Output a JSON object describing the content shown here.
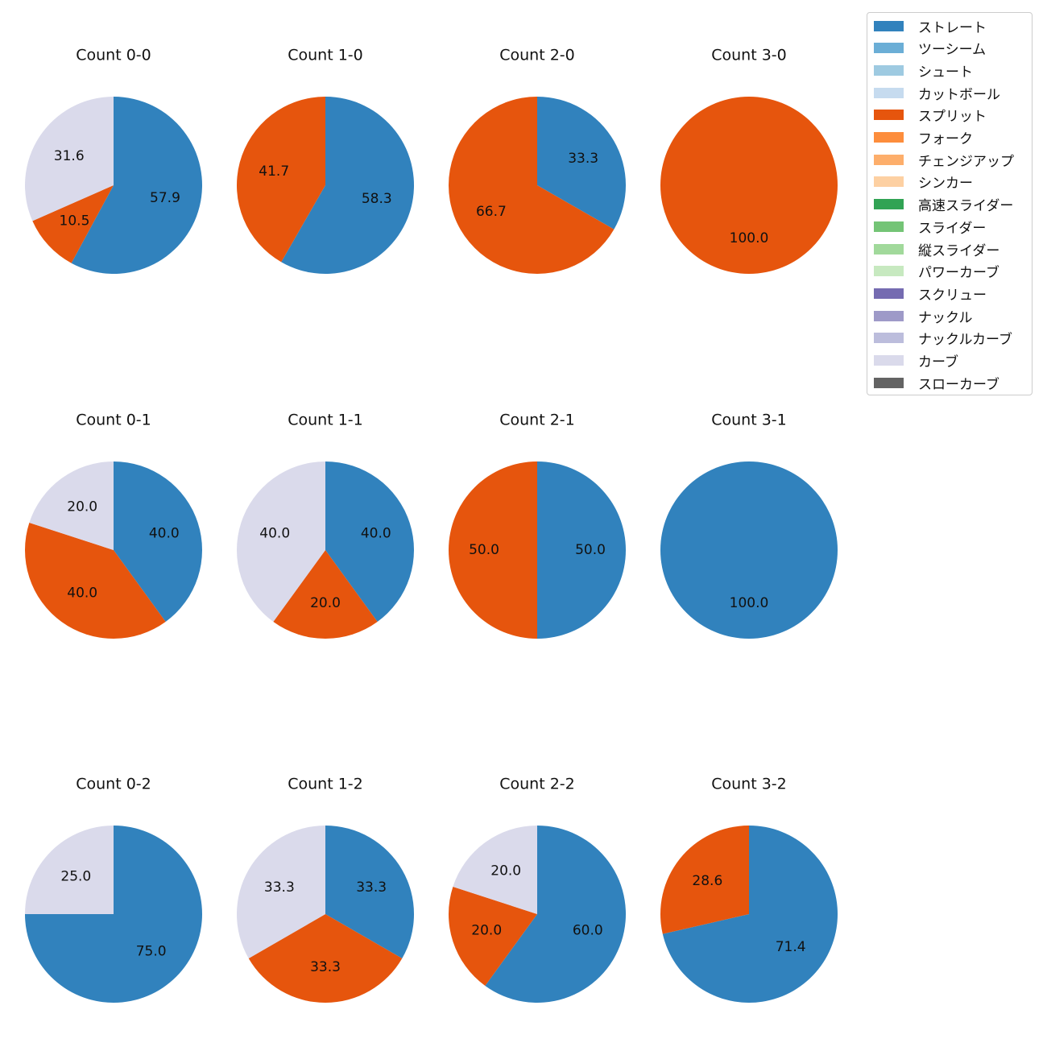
{
  "chart_data": {
    "type": "pie",
    "colors": {
      "ストレート": "#3182bd",
      "ツーシーム": "#6baed6",
      "シュート": "#9ecae1",
      "カットボール": "#c6dbef",
      "スプリット": "#e6550d",
      "フォーク": "#fd8d3c",
      "チェンジアップ": "#fdae6b",
      "シンカー": "#fdd0a2",
      "高速スライダー": "#31a354",
      "スライダー": "#74c476",
      "縦スライダー": "#a1d99b",
      "パワーカーブ": "#c7e9c0",
      "スクリュー": "#756bb1",
      "ナックル": "#9e9ac8",
      "ナックルカーブ": "#bcbddc",
      "カーブ": "#dadaeb",
      "スローカーブ": "#636363"
    },
    "legend": {
      "placement": "top-right",
      "entries": [
        "ストレート",
        "ツーシーム",
        "シュート",
        "カットボール",
        "スプリット",
        "フォーク",
        "チェンジアップ",
        "シンカー",
        "高速スライダー",
        "スライダー",
        "縦スライダー",
        "パワーカーブ",
        "スクリュー",
        "ナックル",
        "ナックルカーブ",
        "カーブ",
        "スローカーブ"
      ]
    },
    "pies": [
      {
        "title": "Count 0-0",
        "slices": [
          {
            "label": "ストレート",
            "value": 57.9,
            "text": "57.9"
          },
          {
            "label": "スプリット",
            "value": 10.5,
            "text": "10.5"
          },
          {
            "label": "カーブ",
            "value": 31.6,
            "text": "31.6"
          }
        ]
      },
      {
        "title": "Count 1-0",
        "slices": [
          {
            "label": "ストレート",
            "value": 58.3,
            "text": "58.3"
          },
          {
            "label": "スプリット",
            "value": 41.7,
            "text": "41.7"
          }
        ]
      },
      {
        "title": "Count 2-0",
        "slices": [
          {
            "label": "ストレート",
            "value": 33.3,
            "text": "33.3"
          },
          {
            "label": "スプリット",
            "value": 66.7,
            "text": "66.7"
          }
        ]
      },
      {
        "title": "Count 3-0",
        "slices": [
          {
            "label": "スプリット",
            "value": 100.0,
            "text": "100.0"
          }
        ]
      },
      {
        "title": "Count 0-1",
        "slices": [
          {
            "label": "ストレート",
            "value": 40.0,
            "text": "40.0"
          },
          {
            "label": "スプリット",
            "value": 40.0,
            "text": "40.0"
          },
          {
            "label": "カーブ",
            "value": 20.0,
            "text": "20.0"
          }
        ]
      },
      {
        "title": "Count 1-1",
        "slices": [
          {
            "label": "ストレート",
            "value": 40.0,
            "text": "40.0"
          },
          {
            "label": "スプリット",
            "value": 20.0,
            "text": "20.0"
          },
          {
            "label": "カーブ",
            "value": 40.0,
            "text": "40.0"
          }
        ]
      },
      {
        "title": "Count 2-1",
        "slices": [
          {
            "label": "ストレート",
            "value": 50.0,
            "text": "50.0"
          },
          {
            "label": "スプリット",
            "value": 50.0,
            "text": "50.0"
          }
        ]
      },
      {
        "title": "Count 3-1",
        "slices": [
          {
            "label": "ストレート",
            "value": 100.0,
            "text": "100.0"
          }
        ]
      },
      {
        "title": "Count 0-2",
        "slices": [
          {
            "label": "ストレート",
            "value": 75.0,
            "text": "75.0"
          },
          {
            "label": "カーブ",
            "value": 25.0,
            "text": "25.0"
          }
        ]
      },
      {
        "title": "Count 1-2",
        "slices": [
          {
            "label": "ストレート",
            "value": 33.3,
            "text": "33.3"
          },
          {
            "label": "スプリット",
            "value": 33.3,
            "text": "33.3"
          },
          {
            "label": "カーブ",
            "value": 33.3,
            "text": "33.3"
          }
        ]
      },
      {
        "title": "Count 2-2",
        "slices": [
          {
            "label": "ストレート",
            "value": 60.0,
            "text": "60.0"
          },
          {
            "label": "スプリット",
            "value": 20.0,
            "text": "20.0"
          },
          {
            "label": "カーブ",
            "value": 20.0,
            "text": "20.0"
          }
        ]
      },
      {
        "title": "Count 3-2",
        "slices": [
          {
            "label": "ストレート",
            "value": 71.4,
            "text": "71.4"
          },
          {
            "label": "スプリット",
            "value": 28.6,
            "text": "28.6"
          }
        ]
      }
    ]
  }
}
